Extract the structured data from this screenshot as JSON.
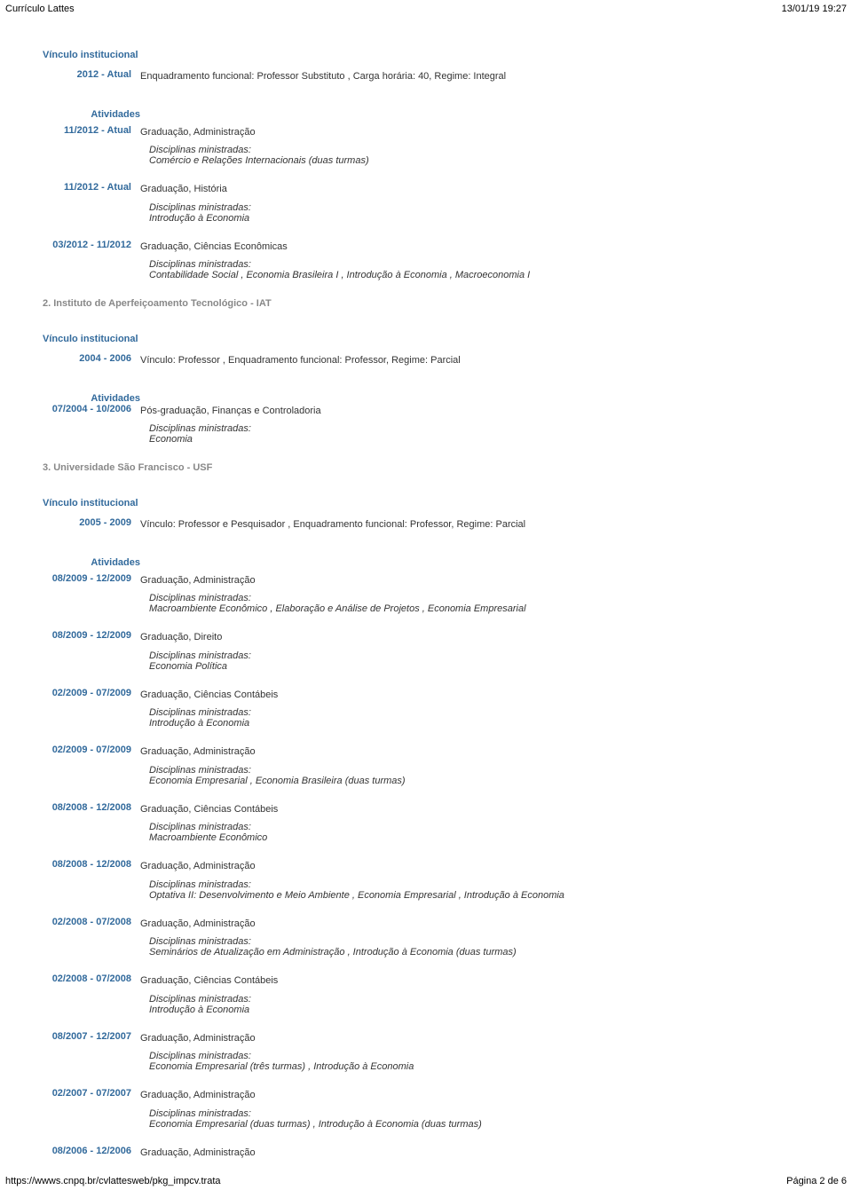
{
  "header": {
    "left": "Currículo Lattes",
    "right": "13/01/19 19:27"
  },
  "footer": {
    "url": "https://wwws.cnpq.br/cvlattesweb/pkg_impcv.trata",
    "page": "Página 2 de 6"
  },
  "labels": {
    "vinculo": "Vínculo institucional",
    "atividades": "Atividades",
    "disciplinas": "Disciplinas ministradas:"
  },
  "inst1": {
    "vinc": {
      "period": "2012 - Atual",
      "desc": "Enquadramento funcional: Professor Substituto , Carga horária: 40, Regime: Integral"
    },
    "acts": [
      {
        "period": "11/2012 - Atual",
        "course": "Graduação, Administração",
        "disc": "Comércio e Relações Internacionais (duas turmas)"
      },
      {
        "period": "11/2012 - Atual",
        "course": "Graduação, História",
        "disc": "Introdução à Economia"
      },
      {
        "period": "03/2012 - 11/2012",
        "course": "Graduação, Ciências Econômicas",
        "disc": "Contabilidade Social , Economia Brasileira I , Introdução à Economia , Macroeconomia I"
      }
    ]
  },
  "inst2": {
    "name": "2. Instituto de Aperfeiçoamento Tecnológico - IAT",
    "vinc": {
      "period": "2004 - 2006",
      "desc": "Vínculo: Professor , Enquadramento funcional: Professor, Regime: Parcial"
    },
    "acts": [
      {
        "period": "07/2004 - 10/2006",
        "course": "Pós-graduação, Finanças e Controladoria",
        "disc": "Economia"
      }
    ]
  },
  "inst3": {
    "name": "3. Universidade São Francisco - USF",
    "vinc": {
      "period": "2005 - 2009",
      "desc": "Vínculo: Professor e Pesquisador , Enquadramento funcional: Professor, Regime: Parcial"
    },
    "acts": [
      {
        "period": "08/2009 - 12/2009",
        "course": "Graduação, Administração",
        "disc": "Macroambiente Econômico , Elaboração e Análise de Projetos , Economia Empresarial"
      },
      {
        "period": "08/2009 - 12/2009",
        "course": "Graduação, Direito",
        "disc": "Economia Política"
      },
      {
        "period": "02/2009 - 07/2009",
        "course": "Graduação, Ciências Contábeis",
        "disc": "Introdução à Economia"
      },
      {
        "period": "02/2009 - 07/2009",
        "course": "Graduação, Administração",
        "disc": "Economia Empresarial , Economia Brasileira (duas turmas)"
      },
      {
        "period": "08/2008 - 12/2008",
        "course": "Graduação, Ciências Contábeis",
        "disc": "Macroambiente Econômico"
      },
      {
        "period": "08/2008 - 12/2008",
        "course": "Graduação, Administração",
        "disc": "Optativa II: Desenvolvimento e Meio Ambiente , Economia Empresarial , Introdução à Economia"
      },
      {
        "period": "02/2008 - 07/2008",
        "course": "Graduação, Administração",
        "disc": "Seminários de Atualização em Administração , Introdução à Economia (duas turmas)"
      },
      {
        "period": "02/2008 - 07/2008",
        "course": "Graduação, Ciências Contábeis",
        "disc": "Introdução à Economia"
      },
      {
        "period": "08/2007 - 12/2007",
        "course": "Graduação, Administração",
        "disc": "Economia Empresarial (três turmas) , Introdução à Economia"
      },
      {
        "period": "02/2007 - 07/2007",
        "course": "Graduação, Administração",
        "disc": "Economia Empresarial (duas turmas) , Introdução à Economia (duas turmas)"
      },
      {
        "period": "08/2006 - 12/2006",
        "course": "Graduação, Administração"
      }
    ]
  }
}
